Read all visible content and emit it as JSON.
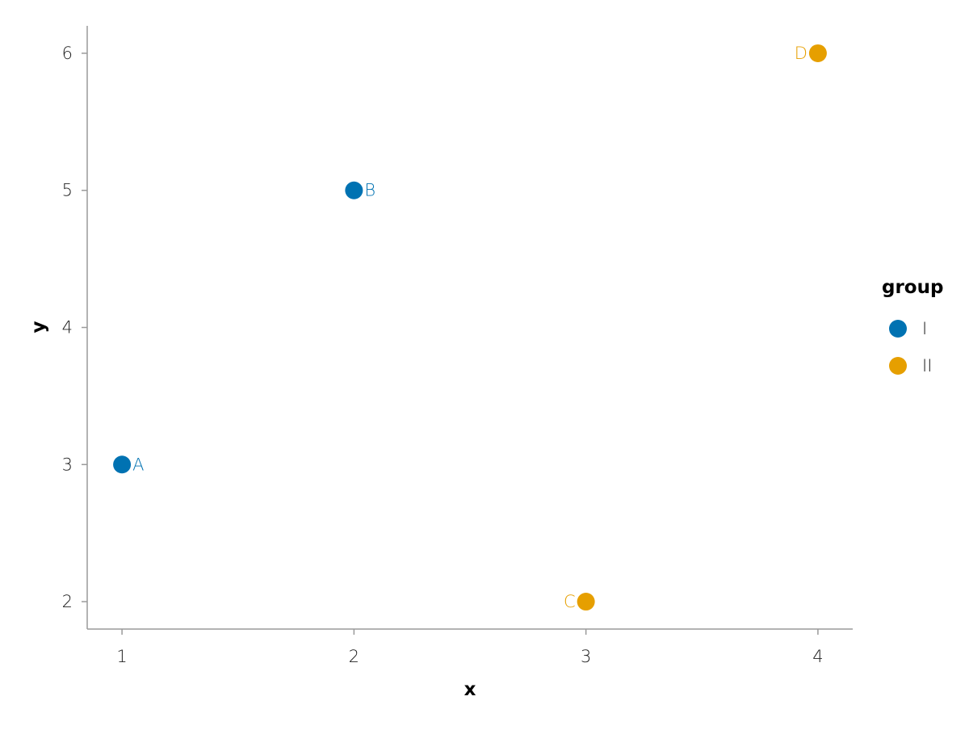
{
  "chart_data": {
    "type": "scatter",
    "x_label": "x",
    "y_label": "y",
    "legend_title": "group",
    "legend_position": "right",
    "series": [
      {
        "name": "I",
        "color": "#0072b2",
        "x": [
          1,
          2
        ],
        "values": [
          3,
          5
        ],
        "point_labels": [
          "A",
          "B"
        ],
        "label_position": "right"
      },
      {
        "name": "II",
        "color": "#e69f00",
        "x": [
          3,
          4
        ],
        "values": [
          2,
          6
        ],
        "point_labels": [
          "C",
          "D"
        ],
        "label_position": "left"
      }
    ],
    "xlim": [
      0.85,
      4.15
    ],
    "ylim": [
      1.8,
      6.2
    ],
    "xticks": [
      1,
      2,
      3,
      4
    ],
    "yticks": [
      2,
      3,
      4,
      5,
      6
    ],
    "grid": false
  }
}
